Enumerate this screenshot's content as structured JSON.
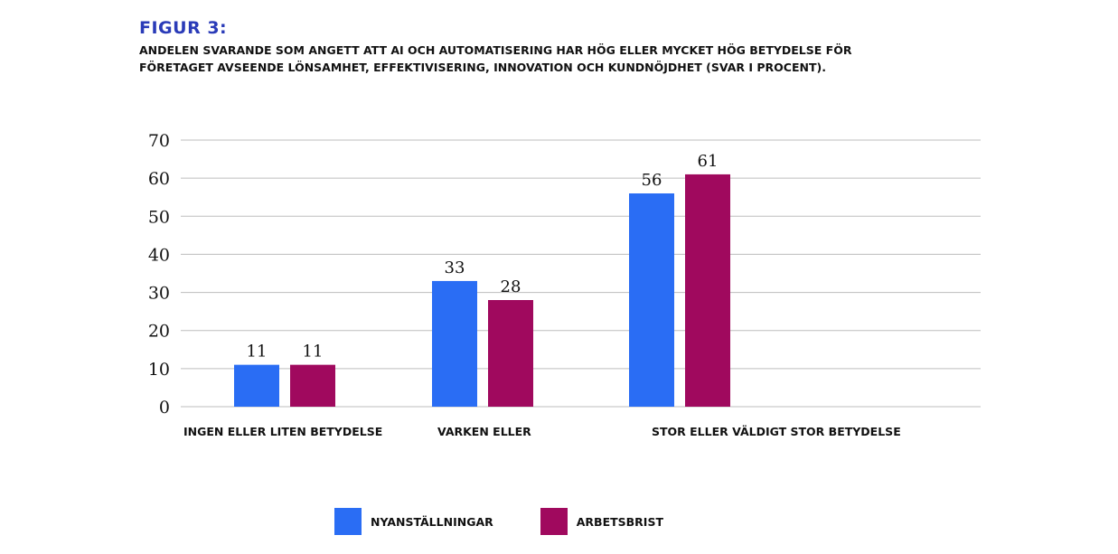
{
  "figure_label": "FIGUR 3:",
  "subtitle_line1": "ANDELEN SVARANDE SOM ANGETT ATT AI OCH AUTOMATISERING HAR HÖG ELLER MYCKET HÖG BETYDELSE FÖR",
  "subtitle_line2": "FÖRETAGET AVSEENDE LÖNSAMHET, EFFEKTIVISERING, INNOVATION OCH KUNDNÖJDHET (SVAR I PROCENT).",
  "colors": {
    "nyanstallningar": "#2a6df4",
    "arbetsbrist": "#a0095e",
    "title": "#2a3bb8",
    "grid": "#bdbdbd"
  },
  "chart_data": {
    "type": "bar",
    "categories": [
      "INGEN ELLER LITEN BETYDELSE",
      "VARKEN ELLER",
      "STOR ELLER VÄLDIGT STOR BETYDELSE"
    ],
    "series": [
      {
        "name": "NYANSTÄLLNINGAR",
        "values": [
          11,
          33,
          56
        ],
        "color": "#2a6df4"
      },
      {
        "name": "ARBETSBRIST",
        "values": [
          11,
          28,
          61
        ],
        "color": "#a0095e"
      }
    ],
    "data_labels": [
      [
        "11",
        "33",
        "56"
      ],
      [
        "11",
        "28",
        "61"
      ]
    ],
    "yticks": [
      0,
      10,
      20,
      30,
      40,
      50,
      60,
      70
    ],
    "ylim": [
      0,
      70
    ],
    "grid": true,
    "legend_position": "bottom"
  }
}
